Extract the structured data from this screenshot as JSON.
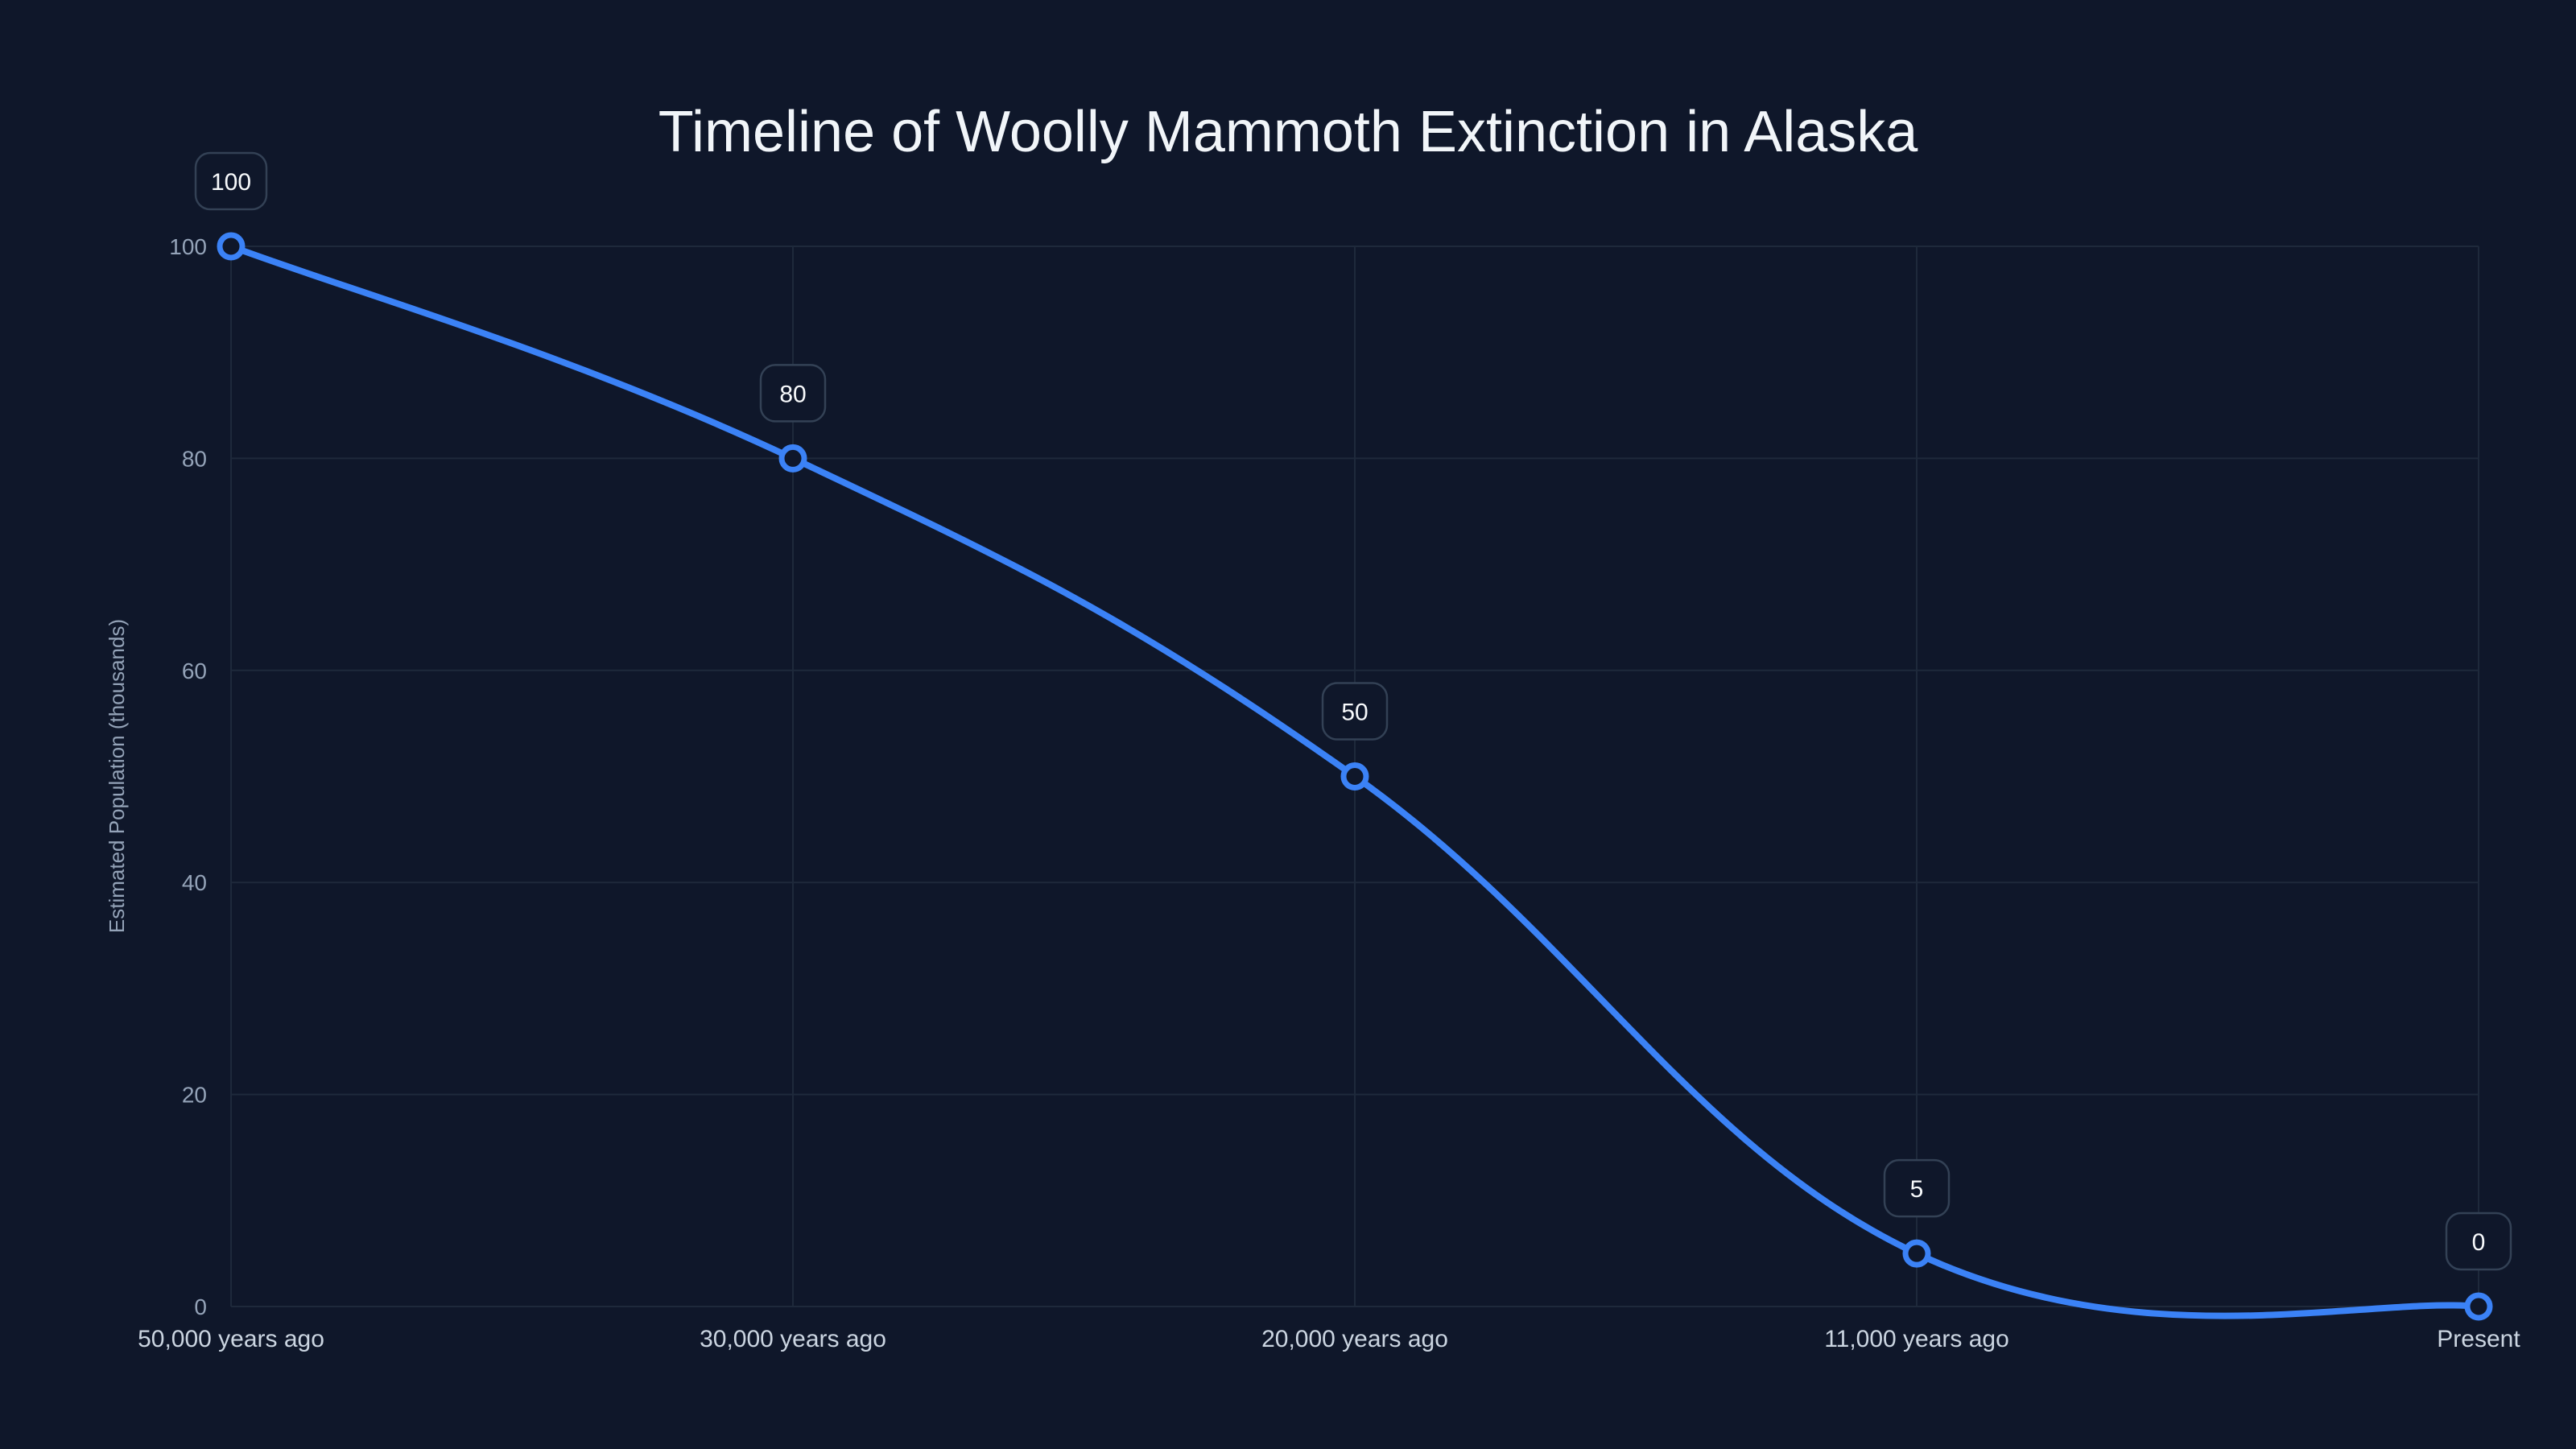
{
  "chart_data": {
    "type": "line",
    "title": "Timeline of Woolly Mammoth Extinction in Alaska",
    "xlabel": "",
    "ylabel": "Estimated Population (thousands)",
    "categories": [
      "50,000 years ago",
      "30,000 years ago",
      "20,000 years ago",
      "11,000 years ago",
      "Present"
    ],
    "series": [
      {
        "name": "Estimated Population",
        "values": [
          100,
          80,
          50,
          5,
          0
        ],
        "color": "#3b82f6"
      }
    ],
    "data_labels": [
      "100",
      "80",
      "50",
      "5",
      "0"
    ],
    "yticks": [
      0,
      20,
      40,
      60,
      80,
      100
    ],
    "ylim": [
      0,
      100
    ],
    "grid": true,
    "legend": "none",
    "smooth": true
  },
  "colors": {
    "background": "#0f172a",
    "grid": "#1e293b",
    "line": "#3b82f6",
    "label_border": "#334155",
    "title": "#f1f5f9",
    "tick": "#94a3b8"
  }
}
